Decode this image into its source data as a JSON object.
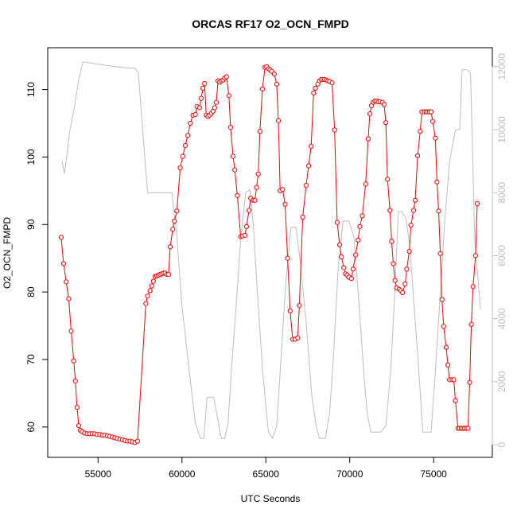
{
  "chart_data": {
    "type": "line",
    "title": "ORCAS RF17 O2_OCN_FMPD",
    "xlabel": "UTC Seconds",
    "ylabel": "O2_OCN_FMPD",
    "xlim": [
      52000,
      78500
    ],
    "ylim": [
      55.5,
      116.2
    ],
    "y2lim": [
      -400,
      12600
    ],
    "x_ticks": [
      55000,
      60000,
      65000,
      70000,
      75000
    ],
    "y_ticks": [
      60,
      70,
      80,
      90,
      100,
      110
    ],
    "y2_ticks": [
      0,
      2000,
      4000,
      6000,
      8000,
      10000,
      12000
    ],
    "colors": {
      "series": "#ff0000",
      "altitude": "#bebebe",
      "frame": "#000000"
    },
    "series": [
      {
        "values": [
          [
            52800,
            88.1
          ],
          [
            52950,
            84.2
          ],
          [
            53100,
            81.5
          ],
          [
            53250,
            79.0
          ],
          [
            53400,
            74.2
          ],
          [
            53550,
            69.8
          ],
          [
            53650,
            66.8
          ],
          [
            53750,
            62.9
          ],
          [
            53850,
            60.2
          ],
          [
            53950,
            59.5
          ],
          [
            54050,
            59.3
          ],
          [
            54200,
            59.1
          ],
          [
            54350,
            59.0
          ],
          [
            54500,
            59.0
          ],
          [
            54650,
            59.0
          ],
          [
            54800,
            59.0
          ],
          [
            54950,
            58.9
          ],
          [
            55100,
            58.9
          ],
          [
            55250,
            58.8
          ],
          [
            55400,
            58.8
          ],
          [
            55550,
            58.7
          ],
          [
            55700,
            58.6
          ],
          [
            55850,
            58.5
          ],
          [
            56000,
            58.4
          ],
          [
            56150,
            58.3
          ],
          [
            56300,
            58.2
          ],
          [
            56450,
            58.1
          ],
          [
            56600,
            58.0
          ],
          [
            56750,
            57.9
          ],
          [
            56900,
            57.9
          ],
          [
            57050,
            57.8
          ],
          [
            57200,
            57.7
          ],
          [
            57350,
            57.9
          ],
          [
            57850,
            78.3
          ],
          [
            57950,
            79.4
          ],
          [
            58100,
            80.2
          ],
          [
            58200,
            80.9
          ],
          [
            58300,
            81.6
          ],
          [
            58400,
            82.3
          ],
          [
            58500,
            82.4
          ],
          [
            58600,
            82.5
          ],
          [
            58700,
            82.6
          ],
          [
            58800,
            82.7
          ],
          [
            58900,
            82.8
          ],
          [
            59000,
            82.8
          ],
          [
            59100,
            82.6
          ],
          [
            59200,
            82.6
          ],
          [
            59300,
            86.7
          ],
          [
            59450,
            89.3
          ],
          [
            59550,
            90.5
          ],
          [
            59700,
            92.0
          ],
          [
            59900,
            98.4
          ],
          [
            60050,
            100.1
          ],
          [
            60200,
            101.7
          ],
          [
            60350,
            103.2
          ],
          [
            60500,
            105.0
          ],
          [
            60650,
            106.2
          ],
          [
            60800,
            106.3
          ],
          [
            60900,
            107.5
          ],
          [
            61050,
            107.3
          ],
          [
            61150,
            108.7
          ],
          [
            61250,
            110.2
          ],
          [
            61350,
            110.9
          ],
          [
            61450,
            106.2
          ],
          [
            61550,
            106.0
          ],
          [
            61650,
            106.2
          ],
          [
            61750,
            106.5
          ],
          [
            61850,
            106.8
          ],
          [
            61950,
            107.3
          ],
          [
            62050,
            108.1
          ],
          [
            62150,
            111.3
          ],
          [
            62250,
            111.1
          ],
          [
            62350,
            111.3
          ],
          [
            62450,
            111.4
          ],
          [
            62550,
            111.7
          ],
          [
            62650,
            111.9
          ],
          [
            62800,
            109.1
          ],
          [
            62900,
            104.4
          ],
          [
            63050,
            100.1
          ],
          [
            63150,
            98.1
          ],
          [
            63300,
            94.3
          ],
          [
            63500,
            88.2
          ],
          [
            63600,
            88.3
          ],
          [
            63750,
            88.4
          ],
          [
            63850,
            89.7
          ],
          [
            64000,
            92.1
          ],
          [
            64100,
            93.9
          ],
          [
            64250,
            93.6
          ],
          [
            64350,
            93.6
          ],
          [
            64450,
            95.5
          ],
          [
            64550,
            97.5
          ],
          [
            64650,
            103.8
          ],
          [
            64800,
            110.1
          ],
          [
            64950,
            113.3
          ],
          [
            65050,
            113.4
          ],
          [
            65150,
            113.1
          ],
          [
            65250,
            112.9
          ],
          [
            65350,
            112.7
          ],
          [
            65500,
            112.3
          ],
          [
            65650,
            110.8
          ],
          [
            65750,
            105.4
          ],
          [
            65850,
            95.0
          ],
          [
            66000,
            95.2
          ],
          [
            66150,
            93.0
          ],
          [
            66300,
            85.0
          ],
          [
            66450,
            77.2
          ],
          [
            66600,
            73.0
          ],
          [
            66750,
            73.0
          ],
          [
            66900,
            73.2
          ],
          [
            67000,
            78.0
          ],
          [
            67200,
            91.1
          ],
          [
            67400,
            95.8
          ],
          [
            67550,
            98.7
          ],
          [
            67700,
            101.6
          ],
          [
            67850,
            109.5
          ],
          [
            67950,
            110.2
          ],
          [
            68100,
            110.8
          ],
          [
            68200,
            111.3
          ],
          [
            68300,
            111.5
          ],
          [
            68400,
            111.5
          ],
          [
            68500,
            111.5
          ],
          [
            68600,
            111.4
          ],
          [
            68700,
            111.3
          ],
          [
            68800,
            111.2
          ],
          [
            68950,
            111.0
          ],
          [
            69100,
            104.0
          ],
          [
            69250,
            90.3
          ],
          [
            69400,
            87.0
          ],
          [
            69500,
            85.2
          ],
          [
            69650,
            83.6
          ],
          [
            69750,
            82.7
          ],
          [
            69850,
            82.5
          ],
          [
            69950,
            82.2
          ],
          [
            70100,
            82.0
          ],
          [
            70200,
            83.4
          ],
          [
            70350,
            85.5
          ],
          [
            70500,
            87.7
          ],
          [
            70600,
            89.7
          ],
          [
            70750,
            91.3
          ],
          [
            70950,
            96.0
          ],
          [
            71100,
            102.7
          ],
          [
            71200,
            106.4
          ],
          [
            71300,
            107.6
          ],
          [
            71400,
            108.1
          ],
          [
            71500,
            108.3
          ],
          [
            71600,
            108.3
          ],
          [
            71700,
            108.2
          ],
          [
            71800,
            108.2
          ],
          [
            71950,
            108.1
          ],
          [
            72050,
            107.8
          ],
          [
            72150,
            105.1
          ],
          [
            72250,
            96.7
          ],
          [
            72400,
            92.1
          ],
          [
            72500,
            87.5
          ],
          [
            72600,
            84.2
          ],
          [
            72700,
            81.7
          ],
          [
            72800,
            80.6
          ],
          [
            72950,
            80.4
          ],
          [
            73050,
            80.2
          ],
          [
            73150,
            79.9
          ],
          [
            73300,
            81.2
          ],
          [
            73400,
            83.4
          ],
          [
            73550,
            86.0
          ],
          [
            73650,
            89.9
          ],
          [
            73800,
            92.1
          ],
          [
            73900,
            93.6
          ],
          [
            74050,
            100.2
          ],
          [
            74200,
            103.8
          ],
          [
            74300,
            106.7
          ],
          [
            74450,
            106.7
          ],
          [
            74550,
            106.7
          ],
          [
            74650,
            106.7
          ],
          [
            74750,
            106.7
          ],
          [
            74850,
            106.7
          ],
          [
            74950,
            105.3
          ],
          [
            75100,
            102.8
          ],
          [
            75200,
            96.3
          ],
          [
            75300,
            92.0
          ],
          [
            75400,
            85.7
          ],
          [
            75500,
            78.9
          ],
          [
            75600,
            74.9
          ],
          [
            75750,
            71.8
          ],
          [
            75850,
            69.2
          ],
          [
            75950,
            67.0
          ],
          [
            76100,
            67.0
          ],
          [
            76200,
            67.0
          ],
          [
            76300,
            63.9
          ],
          [
            76450,
            59.8
          ],
          [
            76550,
            59.8
          ],
          [
            76650,
            59.8
          ],
          [
            76750,
            59.8
          ],
          [
            76850,
            59.8
          ],
          [
            76950,
            59.8
          ],
          [
            77050,
            59.8
          ],
          [
            77150,
            66.6
          ],
          [
            77250,
            75.2
          ],
          [
            77350,
            80.8
          ],
          [
            77500,
            85.4
          ],
          [
            77600,
            93.1
          ]
        ]
      },
      {
        "axis": "right",
        "values": [
          [
            52850,
            9000
          ],
          [
            53000,
            8600
          ],
          [
            53300,
            9900
          ],
          [
            53650,
            10900
          ],
          [
            53850,
            11600
          ],
          [
            54100,
            12150
          ],
          [
            55000,
            12080
          ],
          [
            56000,
            12000
          ],
          [
            56800,
            11960
          ],
          [
            57200,
            11950
          ],
          [
            57400,
            11800
          ],
          [
            57950,
            8000
          ],
          [
            59200,
            8000
          ],
          [
            59400,
            8000
          ],
          [
            59700,
            6600
          ],
          [
            60000,
            4400
          ],
          [
            60400,
            2500
          ],
          [
            60800,
            700
          ],
          [
            61100,
            200
          ],
          [
            61300,
            200
          ],
          [
            61500,
            1500
          ],
          [
            61700,
            1500
          ],
          [
            61900,
            1500
          ],
          [
            62100,
            900
          ],
          [
            62350,
            200
          ],
          [
            62550,
            200
          ],
          [
            62750,
            700
          ],
          [
            62950,
            2400
          ],
          [
            63200,
            4200
          ],
          [
            63500,
            6500
          ],
          [
            63800,
            8000
          ],
          [
            64050,
            8100
          ],
          [
            64250,
            7000
          ],
          [
            64500,
            4800
          ],
          [
            64800,
            2400
          ],
          [
            65150,
            400
          ],
          [
            65400,
            200
          ],
          [
            65650,
            600
          ],
          [
            65900,
            2700
          ],
          [
            66200,
            5200
          ],
          [
            66500,
            6900
          ],
          [
            66800,
            6900
          ],
          [
            67050,
            5800
          ],
          [
            67400,
            3900
          ],
          [
            67750,
            1500
          ],
          [
            68000,
            600
          ],
          [
            68200,
            200
          ],
          [
            68550,
            200
          ],
          [
            68800,
            1000
          ],
          [
            69050,
            3000
          ],
          [
            69300,
            5500
          ],
          [
            69600,
            7100
          ],
          [
            69950,
            7100
          ],
          [
            70250,
            6600
          ],
          [
            70550,
            4500
          ],
          [
            70850,
            2200
          ],
          [
            71050,
            1000
          ],
          [
            71250,
            400
          ],
          [
            71550,
            400
          ],
          [
            71850,
            400
          ],
          [
            72150,
            600
          ],
          [
            72450,
            2400
          ],
          [
            72700,
            5000
          ],
          [
            72900,
            7400
          ],
          [
            73100,
            7400
          ],
          [
            73350,
            7200
          ],
          [
            73600,
            6200
          ],
          [
            73850,
            4300
          ],
          [
            74100,
            2500
          ],
          [
            74350,
            400
          ],
          [
            74600,
            400
          ],
          [
            74850,
            400
          ],
          [
            75100,
            2300
          ],
          [
            75400,
            4800
          ],
          [
            75650,
            7000
          ],
          [
            75950,
            9000
          ],
          [
            76300,
            10000
          ],
          [
            76550,
            10000
          ],
          [
            76700,
            11900
          ],
          [
            77000,
            11900
          ],
          [
            77200,
            11800
          ],
          [
            77450,
            6500
          ],
          [
            77800,
            4300
          ]
        ]
      }
    ],
    "grid": false,
    "legend": "none"
  }
}
